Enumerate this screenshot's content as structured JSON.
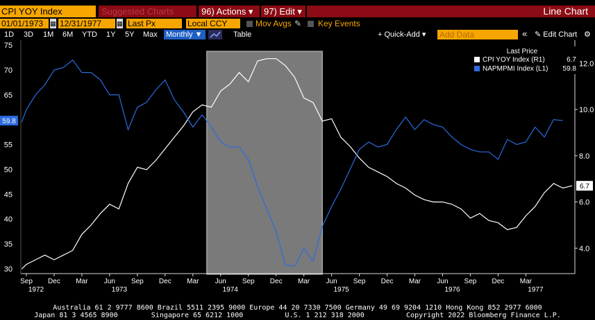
{
  "topbar": {
    "title": "CPI YOY Index",
    "suggested": "Suggested Charts",
    "actions": "96) Actions ▾",
    "edit": "97) Edit ▾",
    "chart_type": "Line Chart"
  },
  "controls": {
    "start_date": "01/01/1973",
    "end_date": "12/31/1977",
    "price_field": "Last Px",
    "currency": "Local CCY",
    "mov_avgs": "Mov Avgs",
    "key_events": "Key Events"
  },
  "ranges": [
    "1D",
    "3D",
    "1M",
    "6M",
    "YTD",
    "1Y",
    "5Y",
    "Max"
  ],
  "toolbar": {
    "periodicity": "Monthly ▼",
    "table": "Table",
    "quick_add": "+ Quick-Add ▾",
    "add_data_placeholder": "Add Data",
    "collapse": "«",
    "edit_chart": "✎ Edit Chart",
    "settings": "⚙"
  },
  "legend": {
    "heading": "Last Price",
    "items": [
      {
        "name": "CPI YOY Index  (R1)",
        "value": "6.7",
        "color": "#ffffff"
      },
      {
        "name": "NAPMPMI Index  (L1)",
        "value": "59.8",
        "color": "#2c6be0"
      }
    ]
  },
  "chart_data": {
    "type": "line",
    "left_axis": {
      "min": 29,
      "max": 76,
      "ticks": [
        30,
        35,
        40,
        45,
        50,
        55,
        60,
        65,
        70,
        75
      ]
    },
    "right_axis": {
      "min": 2.9,
      "max": 13.0,
      "ticks": [
        4.0,
        6.0,
        8.0,
        10.0,
        12.0
      ]
    },
    "x_labels": [
      {
        "label": "Sep",
        "year": "1972",
        "m": 0
      },
      {
        "label": "Dec",
        "year": "",
        "m": 3
      },
      {
        "label": "Mar",
        "year": "",
        "m": 6
      },
      {
        "label": "Jun",
        "year": "1973",
        "m": 9
      },
      {
        "label": "Sep",
        "year": "",
        "m": 12
      },
      {
        "label": "Dec",
        "year": "",
        "m": 15
      },
      {
        "label": "Mar",
        "year": "",
        "m": 18
      },
      {
        "label": "Jun",
        "year": "1974",
        "m": 21
      },
      {
        "label": "Sep",
        "year": "",
        "m": 24
      },
      {
        "label": "Dec",
        "year": "",
        "m": 27
      },
      {
        "label": "Mar",
        "year": "",
        "m": 30
      },
      {
        "label": "Jun",
        "year": "1975",
        "m": 33
      },
      {
        "label": "Sep",
        "year": "",
        "m": 36
      },
      {
        "label": "Dec",
        "year": "",
        "m": 39
      },
      {
        "label": "Mar",
        "year": "",
        "m": 42
      },
      {
        "label": "Jun",
        "year": "1976",
        "m": 45
      },
      {
        "label": "Sep",
        "year": "",
        "m": 48
      },
      {
        "label": "Dec",
        "year": "",
        "m": 51
      },
      {
        "label": "Mar",
        "year": "1977",
        "m": 54
      }
    ],
    "shaded_region": {
      "from_m": 19.5,
      "to_m": 32.0
    },
    "series": [
      {
        "name": "CPI YOY Index",
        "axis": "right",
        "color": "#ffffff",
        "last_label": "6.7",
        "values": [
          [
            -0.5,
            3.1
          ],
          [
            0,
            3.3
          ],
          [
            1,
            3.5
          ],
          [
            2,
            3.7
          ],
          [
            3,
            3.5
          ],
          [
            4,
            3.7
          ],
          [
            5,
            3.9
          ],
          [
            6,
            4.6
          ],
          [
            7,
            5.0
          ],
          [
            8,
            5.5
          ],
          [
            9,
            5.9
          ],
          [
            10,
            5.7
          ],
          [
            11,
            6.8
          ],
          [
            12,
            7.5
          ],
          [
            13,
            7.4
          ],
          [
            14,
            7.8
          ],
          [
            15,
            8.3
          ],
          [
            16,
            8.8
          ],
          [
            17,
            9.3
          ],
          [
            18,
            9.9
          ],
          [
            19,
            10.2
          ],
          [
            20,
            10.1
          ],
          [
            21,
            10.8
          ],
          [
            22,
            11.1
          ],
          [
            23,
            11.6
          ],
          [
            24,
            11.2
          ],
          [
            25,
            12.1
          ],
          [
            26,
            12.2
          ],
          [
            27,
            12.2
          ],
          [
            28,
            11.9
          ],
          [
            29,
            11.4
          ],
          [
            30,
            10.5
          ],
          [
            31,
            10.3
          ],
          [
            32,
            9.5
          ],
          [
            33,
            9.6
          ],
          [
            34,
            8.8
          ],
          [
            35,
            8.4
          ],
          [
            36,
            7.9
          ],
          [
            37,
            7.5
          ],
          [
            38,
            7.3
          ],
          [
            39,
            7.1
          ],
          [
            40,
            6.8
          ],
          [
            41,
            6.6
          ],
          [
            42,
            6.3
          ],
          [
            43,
            6.1
          ],
          [
            44,
            6.0
          ],
          [
            45,
            6.0
          ],
          [
            46,
            5.9
          ],
          [
            47,
            5.7
          ],
          [
            48,
            5.3
          ],
          [
            49,
            5.5
          ],
          [
            50,
            5.2
          ],
          [
            51,
            5.1
          ],
          [
            52,
            4.8
          ],
          [
            53,
            4.9
          ],
          [
            54,
            5.4
          ],
          [
            55,
            5.8
          ],
          [
            56,
            6.4
          ],
          [
            57,
            6.8
          ],
          [
            58,
            6.6
          ],
          [
            59,
            6.7
          ]
        ]
      },
      {
        "name": "NAPMPMI Index",
        "axis": "left",
        "color": "#2c6be0",
        "last_label": "59.8",
        "values": [
          [
            -0.5,
            59.5
          ],
          [
            0,
            62.0
          ],
          [
            1,
            65.0
          ],
          [
            2,
            67.0
          ],
          [
            3,
            70.0
          ],
          [
            4,
            70.5
          ],
          [
            5,
            72.0
          ],
          [
            6,
            69.5
          ],
          [
            7,
            69.5
          ],
          [
            8,
            68.0
          ],
          [
            9,
            65.0
          ],
          [
            10,
            65.0
          ],
          [
            11,
            58.0
          ],
          [
            12,
            62.5
          ],
          [
            13,
            63.5
          ],
          [
            14,
            66.0
          ],
          [
            15,
            68.0
          ],
          [
            16,
            64.0
          ],
          [
            17,
            61.5
          ],
          [
            18,
            58.5
          ],
          [
            19,
            61.0
          ],
          [
            20,
            58.5
          ],
          [
            21,
            55.5
          ],
          [
            22,
            54.5
          ],
          [
            23,
            54.5
          ],
          [
            24,
            52.0
          ],
          [
            25,
            46.5
          ],
          [
            26,
            42.0
          ],
          [
            27,
            37.5
          ],
          [
            28,
            30.7
          ],
          [
            29,
            30.5
          ],
          [
            30,
            34.0
          ],
          [
            31,
            31.5
          ],
          [
            32,
            38.5
          ],
          [
            33,
            42.5
          ],
          [
            34,
            46.0
          ],
          [
            35,
            50.0
          ],
          [
            36,
            54.0
          ],
          [
            37,
            55.5
          ],
          [
            38,
            54.5
          ],
          [
            39,
            55.0
          ],
          [
            40,
            58.0
          ],
          [
            41,
            60.5
          ],
          [
            42,
            58.0
          ],
          [
            43,
            60.0
          ],
          [
            44,
            59.0
          ],
          [
            45,
            58.5
          ],
          [
            46,
            56.5
          ],
          [
            47,
            55.0
          ],
          [
            48,
            54.0
          ],
          [
            49,
            53.5
          ],
          [
            50,
            53.5
          ],
          [
            51,
            52.0
          ],
          [
            52,
            56.0
          ],
          [
            53,
            55.0
          ],
          [
            54,
            55.5
          ],
          [
            55,
            58.5
          ],
          [
            56,
            56.5
          ],
          [
            57,
            60.0
          ],
          [
            58,
            59.8
          ]
        ]
      }
    ]
  },
  "footer": {
    "line1": "Australia 61 2 9777 8600 Brazil 5511 2395 9000 Europe 44 20 7330 7500 Germany 49 69 9204 1210 Hong Kong 852 2977 6000",
    "line2": "Japan 81 3 4565 8900        Singapore 65 6212 1000          U.S. 1 212 318 2000          Copyright 2022 Bloomberg Finance L.P."
  }
}
